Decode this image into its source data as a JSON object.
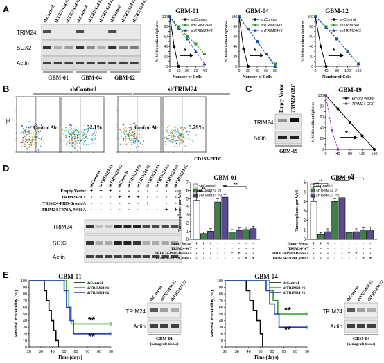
{
  "panels": {
    "A": {
      "letter": "A",
      "blot": {
        "col_labels": [
          "shControl",
          "shTRIM24 #1",
          "shTRIM24 #2",
          "shControl",
          "shTRIM24 #1",
          "shTRIM24 #2",
          "shControl",
          "shTRIM24 #1",
          "shTRIM24 #2"
        ],
        "row_labels": [
          "TRIM24",
          "SOX2",
          "Actin"
        ],
        "group_labels": [
          "GBM-01",
          "GBM-04",
          "GBM-12"
        ]
      },
      "plots": [
        {
          "title": "GBM-01",
          "xlabel": "Number of Cells",
          "ylabel": "% Wells without Spheres",
          "xticks": [
            "0",
            "10",
            "20",
            "30",
            "40"
          ],
          "yticks": [
            "0",
            "10",
            "20",
            "30",
            "40",
            "50",
            "60",
            "70",
            "80",
            "90",
            "100"
          ],
          "star": "*",
          "legend": [
            "shControl",
            "shTRIM24#1",
            "shTRIM24#2"
          ]
        },
        {
          "title": "GBM-04",
          "xlabel": "Number of Cells",
          "ylabel": "% Wells without Spheres",
          "xticks": [
            "0",
            "20",
            "40",
            "60",
            "80"
          ],
          "yticks": [
            "0",
            "10",
            "20",
            "30",
            "40",
            "50",
            "60",
            "70",
            "80",
            "90",
            "100"
          ],
          "star": "*",
          "legend": [
            "shControl",
            "shTRIM24#1",
            "shTRIM24#2"
          ]
        },
        {
          "title": "GBM-12",
          "xlabel": "Number of Cells",
          "ylabel": "% Wells without Spheres",
          "xticks": [
            "0",
            "40",
            "80",
            "120",
            "160"
          ],
          "yticks": [
            "0",
            "10",
            "20",
            "30",
            "40",
            "50",
            "60",
            "70",
            "80",
            "90",
            "100"
          ],
          "star": "*",
          "legend": [
            "shControl",
            "shTRIM24#1",
            "shTRIM24#2"
          ]
        }
      ]
    },
    "B": {
      "letter": "B",
      "header_left": "shControl",
      "header_right": "shTRIM24",
      "xaxis": "CD133-FITC",
      "yaxis": "PE",
      "plots": [
        {
          "label": "Control Ab",
          "pct": ""
        },
        {
          "label": "",
          "pct": "32.1%"
        },
        {
          "label": "Control Ab",
          "pct": ""
        },
        {
          "label": "",
          "pct": "3.29%"
        }
      ]
    },
    "C": {
      "letter": "C",
      "blot": {
        "col_labels": [
          "Empty Vector",
          "TRIM24 ORF"
        ],
        "row_labels": [
          "TRIM24",
          "Actin"
        ],
        "caption": "GBM-19"
      },
      "plot": {
        "title": "GBM-19",
        "ylabel": "% Wells without Spheres",
        "xticks": [
          "0",
          "40",
          "80",
          "120",
          "160"
        ],
        "yticks": [
          "0",
          "10",
          "20",
          "30",
          "40",
          "50",
          "60",
          "70",
          "80",
          "90",
          "100"
        ],
        "star": "*",
        "legend": [
          "Empty Vector",
          "TRIM24 ORF"
        ]
      }
    },
    "D": {
      "letter": "D",
      "blot": {
        "col_labels": [
          "shControl",
          "shTRIM24 #1",
          "shTRIM24 #2",
          "shControl",
          "shTRIM24 #1",
          "shTRIM24 #2",
          "shTRIM24 #1",
          "shTRIM24 #2",
          "shTRIM24 #1",
          "shTRIM24 #2"
        ],
        "conditions": [
          {
            "name": "Empty Vector",
            "marks": [
              "+",
              "+",
              "+",
              "-",
              "-",
              "-",
              "-",
              "-",
              "-",
              "-"
            ]
          },
          {
            "name": "TRIM24-WT",
            "marks": [
              "-",
              "-",
              "-",
              "+",
              "+",
              "+",
              "-",
              "-",
              "-",
              "-"
            ]
          },
          {
            "name": "TRIM24-PHD-BromoA",
            "marks": [
              "-",
              "-",
              "-",
              "-",
              "-",
              "-",
              "+",
              "+",
              "-",
              "-"
            ]
          },
          {
            "name": "TRIM24-F979A, N980A",
            "marks": [
              "-",
              "-",
              "-",
              "-",
              "-",
              "-",
              "-",
              "-",
              "+",
              "+"
            ]
          }
        ],
        "row_labels": [
          "TRIM24",
          "SOX2",
          "Actin"
        ]
      },
      "bars": [
        {
          "title": "GBM-01",
          "ylabel": "Tumorspheres per Well",
          "yticks": [
            "0",
            "1",
            "2",
            "3",
            "4",
            "5",
            "6",
            "7"
          ],
          "legend": [
            "shControl",
            "shTRIM24 #1",
            "shTRIM24 #2"
          ],
          "sig": [
            "**",
            "**",
            "**",
            "**"
          ],
          "conditions": [
            {
              "name": "Empty Vector",
              "marks": [
                "+",
                "+",
                "+",
                "-",
                "-",
                "-",
                "-",
                "-",
                "-"
              ]
            },
            {
              "name": "TRIM24-WT",
              "marks": [
                "-",
                "-",
                "-",
                "+",
                "+",
                "-",
                "-",
                "-",
                "-"
              ]
            },
            {
              "name": "TRIM24-PHD-BromoA",
              "marks": [
                "-",
                "-",
                "-",
                "-",
                "-",
                "+",
                "+",
                "-",
                "-"
              ]
            },
            {
              "name": "TRIM24-F979A,N980A",
              "marks": [
                "-",
                "-",
                "-",
                "-",
                "-",
                "-",
                "-",
                "+",
                "+"
              ]
            }
          ]
        },
        {
          "title": "GBM-04",
          "ylabel": "Tumorspheres per Well",
          "yticks": [
            "0",
            "1",
            "2",
            "3",
            "4",
            "5",
            "6"
          ],
          "legend": [
            "shControl",
            "shTRIM24 #1",
            "shTRIM24 #2"
          ],
          "sig": [
            "**",
            "**",
            "**",
            "**"
          ],
          "conditions": [
            {
              "name": "Empty Vector",
              "marks": [
                "+",
                "+",
                "+",
                "-",
                "-",
                "-",
                "-",
                "-",
                "-"
              ]
            },
            {
              "name": "TRIM24-WT",
              "marks": [
                "-",
                "-",
                "-",
                "+",
                "+",
                "-",
                "-",
                "-",
                "-"
              ]
            },
            {
              "name": "TRIM24-PHD-BromoA",
              "marks": [
                "-",
                "-",
                "-",
                "-",
                "-",
                "+",
                "+",
                "-",
                "-"
              ]
            },
            {
              "name": "TRIM24-F979A,N980A",
              "marks": [
                "-",
                "-",
                "-",
                "-",
                "-",
                "-",
                "-",
                "+",
                "+"
              ]
            }
          ]
        }
      ]
    },
    "E": {
      "letter": "E",
      "plots": [
        {
          "title": "GBM-01",
          "ylabel": "Survival Probability (%)",
          "xlabel": "Time (days)",
          "xticks": [
            "20",
            "30",
            "40",
            "50",
            "60",
            "70",
            "80",
            "90"
          ],
          "yticks": [
            "0",
            "10",
            "20",
            "30",
            "40",
            "50",
            "60",
            "70",
            "80",
            "90",
            "100"
          ],
          "legend": [
            "shControl",
            "shTRIM24 #1",
            "shTRIM24 #2"
          ],
          "sig": [
            "**",
            "**"
          ],
          "blot": {
            "col_labels": [
              "shControl",
              "shTRIM24 #1",
              "shTRIM24 #2"
            ],
            "row_labels": [
              "TRIM24",
              "Actin"
            ],
            "caption": [
              "GBM-01",
              "(xenograft tissue)"
            ]
          }
        },
        {
          "title": "GBM-04",
          "ylabel": "Survival Probability (%)",
          "xlabel": "Time (days)",
          "xticks": [
            "20",
            "30",
            "40",
            "50",
            "60",
            "70",
            "80",
            "90"
          ],
          "yticks": [
            "0",
            "10",
            "20",
            "30",
            "40",
            "50",
            "60",
            "70",
            "80",
            "90",
            "100"
          ],
          "legend": [
            "shControl",
            "shTRIM24 #1",
            "shTRIM24 #2"
          ],
          "sig": [
            "**",
            "**"
          ],
          "blot": {
            "col_labels": [
              "shControl",
              "shTRIM24 #1",
              "shTRIM24 #2"
            ],
            "row_labels": [
              "TRIM24",
              "Actin"
            ],
            "caption": [
              "GBM-04",
              "(xenograft tissue)"
            ]
          }
        }
      ]
    }
  },
  "chart_data": [
    {
      "type": "line",
      "id": "A-GBM-01",
      "title": "GBM-01",
      "xlabel": "Number of Cells",
      "ylabel": "% Wells without Spheres",
      "xlim": [
        0,
        40
      ],
      "ylim": [
        0,
        100
      ],
      "series": [
        {
          "name": "shControl",
          "x": [
            0,
            5,
            10
          ],
          "y": [
            100,
            40,
            0
          ],
          "color": "#000000",
          "marker": "circle"
        },
        {
          "name": "shTRIM24#1",
          "x": [
            0,
            10,
            20,
            30,
            40
          ],
          "y": [
            100,
            80,
            60,
            45,
            25
          ],
          "color": "#2e9a2e",
          "marker": "square"
        },
        {
          "name": "shTRIM24#2",
          "x": [
            0,
            10,
            20,
            30,
            40
          ],
          "y": [
            100,
            75,
            55,
            30,
            5
          ],
          "color": "#1f3fbf",
          "marker": "triangle"
        }
      ]
    },
    {
      "type": "line",
      "id": "A-GBM-04",
      "title": "GBM-04",
      "xlabel": "Number of Cells",
      "ylabel": "% Wells without Spheres",
      "xlim": [
        0,
        80
      ],
      "ylim": [
        0,
        100
      ],
      "series": [
        {
          "name": "shControl",
          "x": [
            0,
            10,
            20
          ],
          "y": [
            100,
            35,
            0
          ],
          "color": "#000000",
          "marker": "circle"
        },
        {
          "name": "shTRIM24#1",
          "x": [
            0,
            20,
            40,
            60,
            80
          ],
          "y": [
            100,
            75,
            50,
            25,
            5
          ],
          "color": "#2e9a2e",
          "marker": "square"
        },
        {
          "name": "shTRIM24#2",
          "x": [
            0,
            20,
            40,
            60,
            80
          ],
          "y": [
            100,
            75,
            50,
            25,
            0
          ],
          "color": "#1f3fbf",
          "marker": "triangle"
        }
      ]
    },
    {
      "type": "line",
      "id": "A-GBM-12",
      "title": "GBM-12",
      "xlabel": "Number of Cells",
      "ylabel": "% Wells without Spheres",
      "xlim": [
        0,
        160
      ],
      "ylim": [
        0,
        100
      ],
      "series": [
        {
          "name": "shControl",
          "x": [
            0,
            20,
            40
          ],
          "y": [
            100,
            40,
            0
          ],
          "color": "#000000",
          "marker": "circle"
        },
        {
          "name": "shTRIM24#1",
          "x": [
            0,
            40,
            80,
            120,
            160
          ],
          "y": [
            100,
            80,
            55,
            30,
            5
          ],
          "color": "#2e9a2e",
          "marker": "square"
        },
        {
          "name": "shTRIM24#2",
          "x": [
            0,
            40,
            80,
            120,
            160
          ],
          "y": [
            100,
            78,
            55,
            30,
            5
          ],
          "color": "#1f3fbf",
          "marker": "triangle"
        }
      ]
    },
    {
      "type": "line",
      "id": "C-GBM-19",
      "title": "GBM-19",
      "ylabel": "% Wells without Spheres",
      "xlim": [
        0,
        160
      ],
      "ylim": [
        0,
        100
      ],
      "series": [
        {
          "name": "Empty Vector",
          "x": [
            0,
            40,
            80,
            120,
            160
          ],
          "y": [
            100,
            75,
            50,
            25,
            0
          ],
          "color": "#000000",
          "marker": "circle"
        },
        {
          "name": "TRIM24 ORF",
          "x": [
            0,
            20,
            40
          ],
          "y": [
            100,
            35,
            0
          ],
          "color": "#9b2fb5",
          "marker": "circle"
        }
      ]
    },
    {
      "type": "bar",
      "id": "D-GBM-01",
      "title": "GBM-01",
      "ylabel": "Tumorspheres per Well",
      "ylim": [
        0,
        7
      ],
      "values": [
        4.8,
        0.7,
        1.0,
        4.6,
        5.2,
        0.9,
        1.1,
        1.2,
        1.3
      ],
      "errors": [
        0.4,
        0.2,
        0.3,
        0.4,
        0.3,
        0.3,
        0.3,
        0.3,
        0.3
      ],
      "series_of_bar": [
        "shControl",
        "shTRIM24 #1",
        "shTRIM24 #2",
        "shTRIM24 #1",
        "shTRIM24 #2",
        "shTRIM24 #1",
        "shTRIM24 #2",
        "shTRIM24 #1",
        "shTRIM24 #2"
      ]
    },
    {
      "type": "bar",
      "id": "D-GBM-04",
      "title": "GBM-04",
      "ylabel": "Tumorspheres per Well",
      "ylim": [
        0,
        6
      ],
      "values": [
        4.0,
        0.5,
        0.8,
        4.0,
        4.4,
        0.7,
        0.8,
        0.9,
        1.0
      ],
      "errors": [
        0.4,
        0.2,
        0.3,
        0.3,
        0.4,
        0.3,
        0.3,
        0.3,
        0.3
      ],
      "series_of_bar": [
        "shControl",
        "shTRIM24 #1",
        "shTRIM24 #2",
        "shTRIM24 #1",
        "shTRIM24 #2",
        "shTRIM24 #1",
        "shTRIM24 #2",
        "shTRIM24 #1",
        "shTRIM24 #2"
      ]
    },
    {
      "type": "line",
      "id": "E-GBM-01",
      "title": "GBM-01",
      "xlabel": "Time (days)",
      "ylabel": "Survival Probability (%)",
      "xlim": [
        20,
        90
      ],
      "ylim": [
        0,
        100
      ],
      "series": [
        {
          "name": "shControl",
          "x": [
            20,
            30,
            33,
            35,
            37,
            39,
            41,
            43,
            45
          ],
          "y": [
            100,
            100,
            85,
            70,
            55,
            40,
            25,
            10,
            0
          ],
          "color": "#000000"
        },
        {
          "name": "shTRIM24 #1",
          "x": [
            20,
            50,
            52,
            54,
            56,
            90
          ],
          "y": [
            100,
            100,
            85,
            60,
            35,
            35
          ],
          "color": "#2e9a2e"
        },
        {
          "name": "shTRIM24 #2",
          "x": [
            20,
            48,
            50,
            52,
            55,
            58,
            90
          ],
          "y": [
            100,
            100,
            85,
            60,
            40,
            20,
            20
          ],
          "color": "#1f3fbf"
        }
      ]
    },
    {
      "type": "line",
      "id": "E-GBM-04",
      "title": "GBM-04",
      "xlabel": "Time (days)",
      "ylabel": "Survival Probability (%)",
      "xlim": [
        20,
        90
      ],
      "ylim": [
        0,
        100
      ],
      "series": [
        {
          "name": "shControl",
          "x": [
            20,
            35,
            38,
            41,
            44,
            47,
            50,
            52
          ],
          "y": [
            100,
            100,
            85,
            70,
            55,
            40,
            20,
            0
          ],
          "color": "#000000"
        },
        {
          "name": "shTRIM24 #1",
          "x": [
            20,
            55,
            58,
            61,
            65,
            90
          ],
          "y": [
            100,
            100,
            85,
            70,
            50,
            50
          ],
          "color": "#2e9a2e"
        },
        {
          "name": "shTRIM24 #2",
          "x": [
            20,
            52,
            55,
            58,
            62,
            66,
            90
          ],
          "y": [
            100,
            100,
            85,
            65,
            50,
            30,
            30
          ],
          "color": "#1f3fbf"
        }
      ]
    }
  ]
}
